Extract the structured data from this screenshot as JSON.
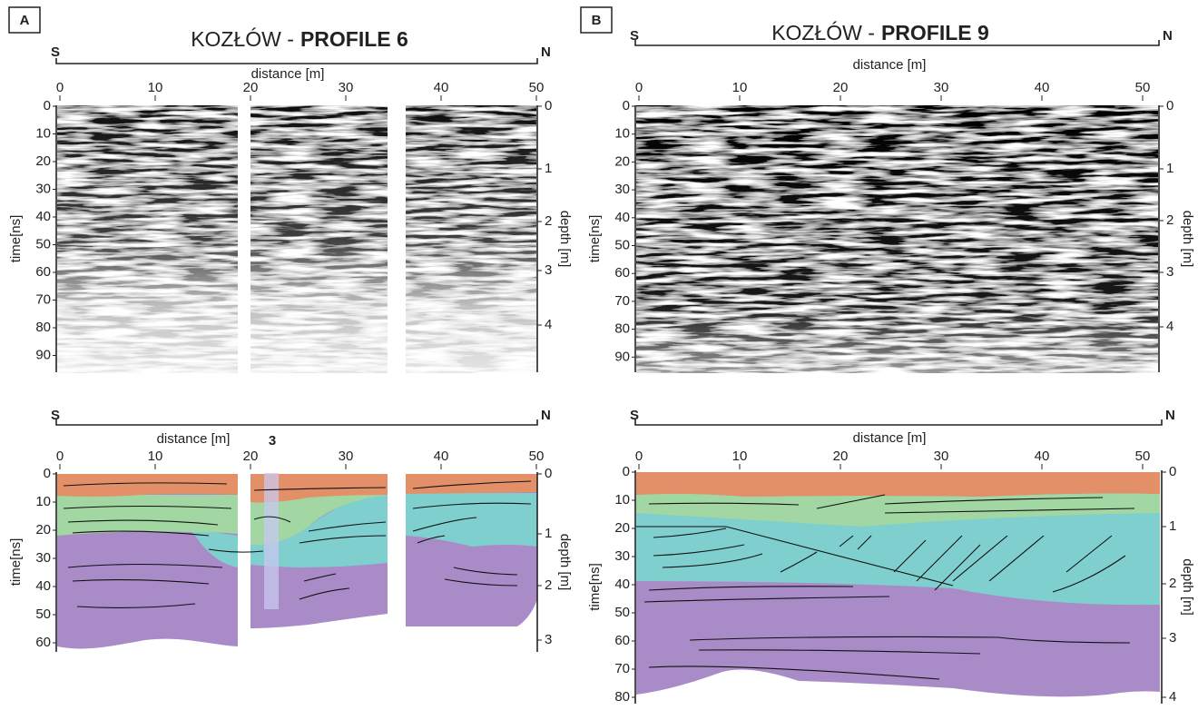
{
  "panels": [
    {
      "label": "A",
      "title_prefix": "KOZŁÓW -",
      "title_profile": "PROFILE 6",
      "radargram": {
        "left": "S",
        "right": "N",
        "x_label": "distance [m]",
        "x_ticks": [
          0,
          10,
          20,
          30,
          40,
          50
        ],
        "time_label": "time[ns]",
        "time_ticks": [
          0,
          10,
          20,
          30,
          40,
          50,
          60,
          70,
          80,
          90
        ],
        "depth_label": "depth [m]",
        "depth_ticks": [
          0,
          1,
          2,
          3,
          4
        ]
      },
      "interpretation": {
        "left": "S",
        "right": "N",
        "x_label": "distance [m]",
        "marker": "3",
        "x_ticks": [
          0,
          10,
          20,
          30,
          40,
          50
        ],
        "time_label": "time[ns]",
        "time_ticks": [
          0,
          10,
          20,
          30,
          40,
          50,
          60
        ],
        "depth_label": "depth [m]",
        "depth_ticks": [
          0,
          1,
          2,
          3
        ]
      }
    },
    {
      "label": "B",
      "title_prefix": "KOZŁÓW -",
      "title_profile": "PROFILE 9",
      "radargram": {
        "left": "S",
        "right": "N",
        "x_label": "distance [m]",
        "x_ticks": [
          0,
          10,
          20,
          30,
          40,
          50
        ],
        "time_label": "time[ns]",
        "time_ticks": [
          0,
          10,
          20,
          30,
          40,
          50,
          60,
          70,
          80,
          90
        ],
        "depth_label": "depth [m]",
        "depth_ticks": [
          0,
          1,
          2,
          3,
          4
        ]
      },
      "interpretation": {
        "left": "S",
        "right": "N",
        "x_label": "distance [m]",
        "x_ticks": [
          0,
          10,
          20,
          30,
          40,
          50
        ],
        "time_label": "time[ns]",
        "time_ticks": [
          0,
          10,
          20,
          30,
          40,
          50,
          60,
          70,
          80
        ],
        "depth_label": "depth [m]",
        "depth_ticks": [
          0,
          1,
          2,
          3,
          4
        ]
      }
    }
  ]
}
